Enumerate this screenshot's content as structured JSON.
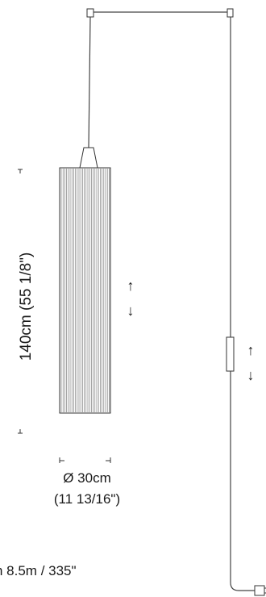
{
  "dimensions": {
    "height_label": "140cm (55 1/8\")",
    "diameter_label": "Ø 30cm",
    "diameter_inch_label": "(11 13/16\")",
    "cable_length_label": "n 8.5m / 335\""
  },
  "adjust_icons": {
    "lamp_up": "↑",
    "lamp_down": "↓",
    "cable_up": "↑",
    "cable_down": "↓"
  }
}
